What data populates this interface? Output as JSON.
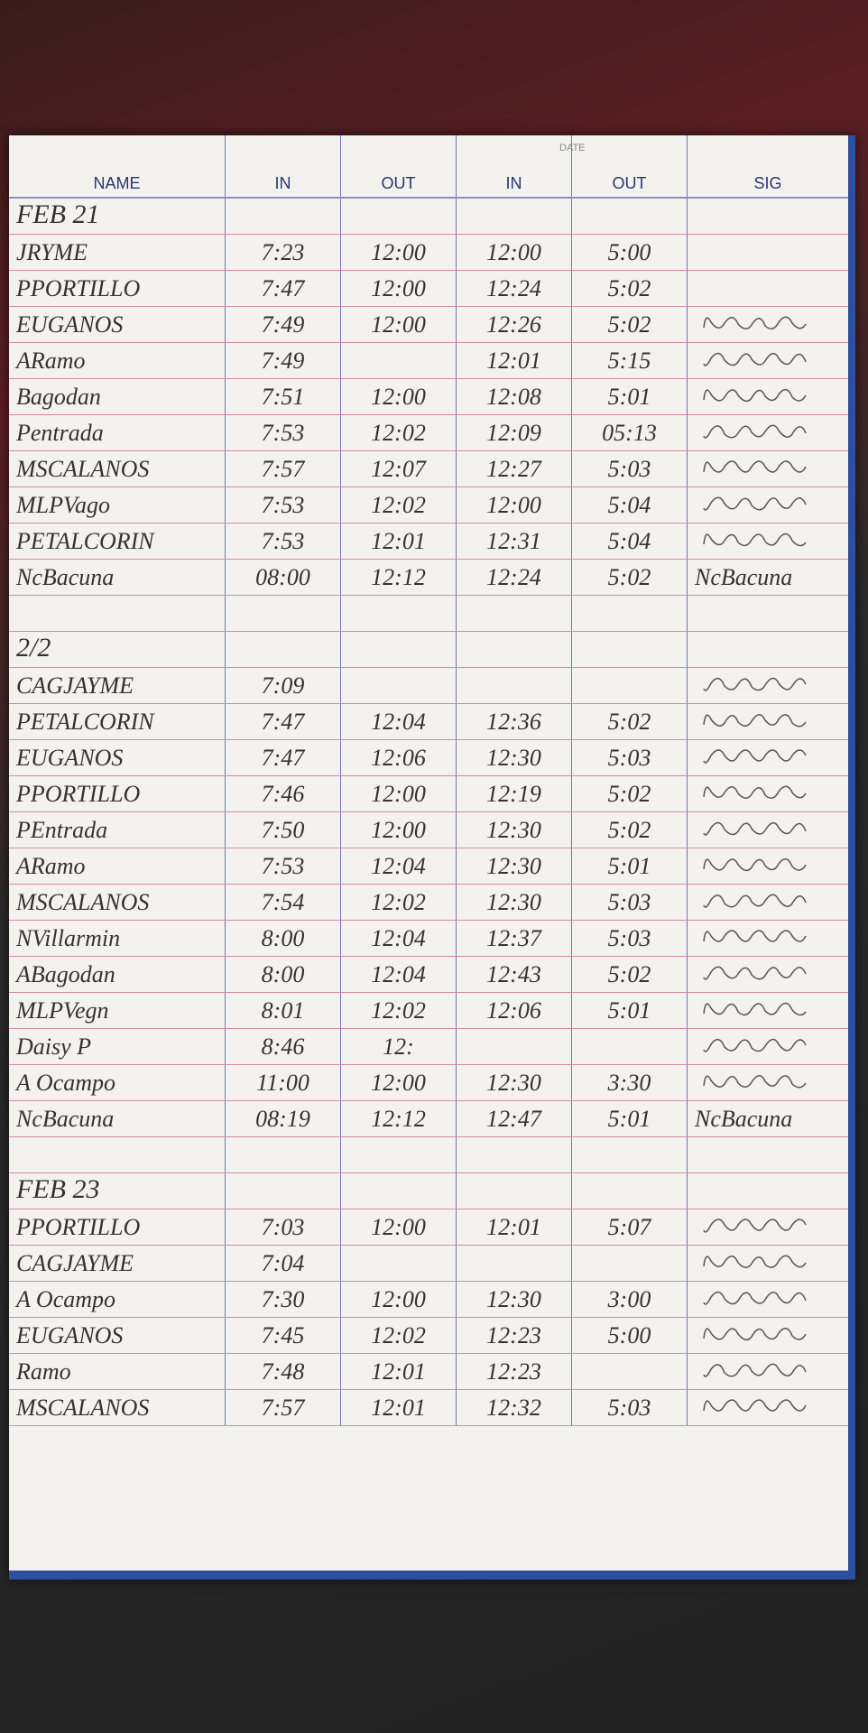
{
  "header": {
    "date_label": "DATE",
    "columns": [
      "NAME",
      "IN",
      "OUT",
      "IN",
      "OUT",
      "SIG"
    ]
  },
  "sections": [
    {
      "title": "FEB 21",
      "rows": [
        {
          "name": "JRYME",
          "times": [
            "7:23",
            "12:00",
            "12:00",
            "5:00"
          ]
        },
        {
          "name": "PPORTILLO",
          "times": [
            "7:47",
            "12:00",
            "12:24",
            "5:02"
          ]
        },
        {
          "name": "EUGANOS",
          "times": [
            "7:49",
            "12:00",
            "12:26",
            "5:02"
          ]
        },
        {
          "name": "ARamo",
          "times": [
            "7:49",
            null,
            "12:01",
            "5:15"
          ]
        },
        {
          "name": "Bagodan",
          "times": [
            "7:51",
            "12:00",
            "12:08",
            "5:01"
          ]
        },
        {
          "name": "Pentrada",
          "times": [
            "7:53",
            "12:02",
            "12:09",
            "05:13"
          ]
        },
        {
          "name": "MSCALANOS",
          "times": [
            "7:57",
            "12:07",
            "12:27",
            "5:03"
          ]
        },
        {
          "name": "MLPVago",
          "times": [
            "7:53",
            "12:02",
            "12:00",
            "5:04"
          ]
        },
        {
          "name": "PETALCORIN",
          "times": [
            "7:53",
            "12:01",
            "12:31",
            "5:04"
          ]
        },
        {
          "name": "NcBacuna",
          "times": [
            "08:00",
            "12:12",
            "12:24",
            "5:02"
          ],
          "sig": "NcBacuna"
        }
      ]
    },
    {
      "title": "2/2",
      "rows": [
        {
          "name": "CAGJAYME",
          "times": [
            "7:09",
            null,
            null,
            null
          ]
        },
        {
          "name": "PETALCORIN",
          "times": [
            "7:47",
            "12:04",
            "12:36",
            "5:02"
          ]
        },
        {
          "name": "EUGANOS",
          "times": [
            "7:47",
            "12:06",
            "12:30",
            "5:03"
          ]
        },
        {
          "name": "PPORTILLO",
          "times": [
            "7:46",
            "12:00",
            "12:19",
            "5:02"
          ]
        },
        {
          "name": "PEntrada",
          "times": [
            "7:50",
            "12:00",
            "12:30",
            "5:02"
          ]
        },
        {
          "name": "ARamo",
          "times": [
            "7:53",
            "12:04",
            "12:30",
            "5:01"
          ]
        },
        {
          "name": "MSCALANOS",
          "times": [
            "7:54",
            "12:02",
            "12:30",
            "5:03"
          ]
        },
        {
          "name": "NVillarmin",
          "times": [
            "8:00",
            "12:04",
            "12:37",
            "5:03"
          ]
        },
        {
          "name": "ABagodan",
          "times": [
            "8:00",
            "12:04",
            "12:43",
            "5:02"
          ]
        },
        {
          "name": "MLPVegn",
          "times": [
            "8:01",
            "12:02",
            "12:06",
            "5:01"
          ]
        },
        {
          "name": "Daisy P",
          "times": [
            "8:46",
            "12:",
            null,
            null
          ]
        },
        {
          "name": "A Ocampo",
          "times": [
            "11:00",
            "12:00",
            "12:30",
            "3:30"
          ]
        },
        {
          "name": "NcBacuna",
          "times": [
            "08:19",
            "12:12",
            "12:47",
            "5:01"
          ],
          "sig": "NcBacuna"
        }
      ]
    },
    {
      "title": "FEB 23",
      "rows": [
        {
          "name": "PPORTILLO",
          "times": [
            "7:03",
            "12:00",
            "12:01",
            "5:07"
          ]
        },
        {
          "name": "CAGJAYME",
          "times": [
            "7:04",
            null,
            null,
            null
          ]
        },
        {
          "name": "A Ocampo",
          "times": [
            "7:30",
            "12:00",
            "12:30",
            "3:00"
          ]
        },
        {
          "name": "EUGANOS",
          "times": [
            "7:45",
            "12:02",
            "12:23",
            "5:00"
          ]
        },
        {
          "name": "Ramo",
          "times": [
            "7:48",
            "12:01",
            "12:23",
            null
          ]
        },
        {
          "name": "MSCALANOS",
          "times": [
            "7:57",
            "12:01",
            "12:32",
            "5:03"
          ]
        }
      ]
    }
  ]
}
